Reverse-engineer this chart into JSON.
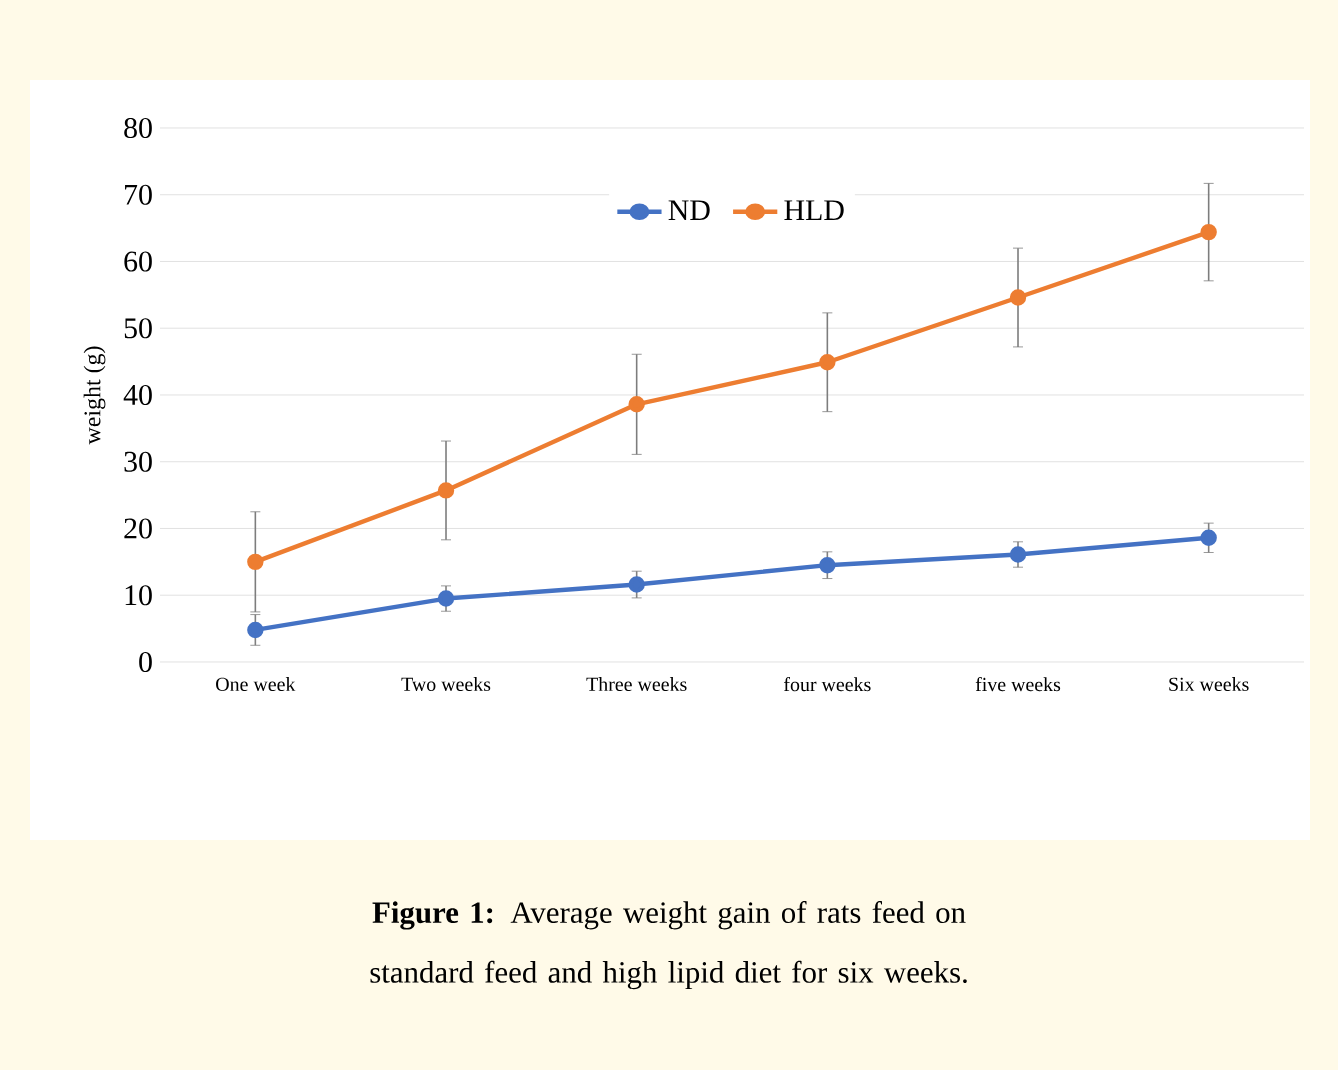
{
  "chart_data": {
    "type": "line",
    "ylabel": "weight (g)",
    "categories": [
      "One week",
      "Two weeks",
      "Three weeks",
      "four weeks",
      "five weeks",
      "Six weeks"
    ],
    "series": [
      {
        "name": "ND",
        "color": "#4472c4",
        "values": [
          4.8,
          9.5,
          11.6,
          14.5,
          16.1,
          18.6
        ],
        "errors": [
          2.3,
          1.9,
          2.0,
          2.0,
          1.9,
          2.2
        ]
      },
      {
        "name": "HLD",
        "color": "#ed7d31",
        "values": [
          15.0,
          25.7,
          38.6,
          44.9,
          54.6,
          64.4
        ],
        "errors": [
          7.5,
          7.4,
          7.5,
          7.4,
          7.4,
          7.3
        ]
      }
    ],
    "ylim": [
      0,
      80
    ],
    "yticks": [
      0,
      10,
      20,
      30,
      40,
      50,
      60,
      70,
      80
    ],
    "grid": "y",
    "legend": "top",
    "marker": "circle",
    "line_style": "solid",
    "annotations": [
      "**Figure 1:** Average weight gain of rats feed on standard feed and high lipid diet for six weeks."
    ]
  }
}
